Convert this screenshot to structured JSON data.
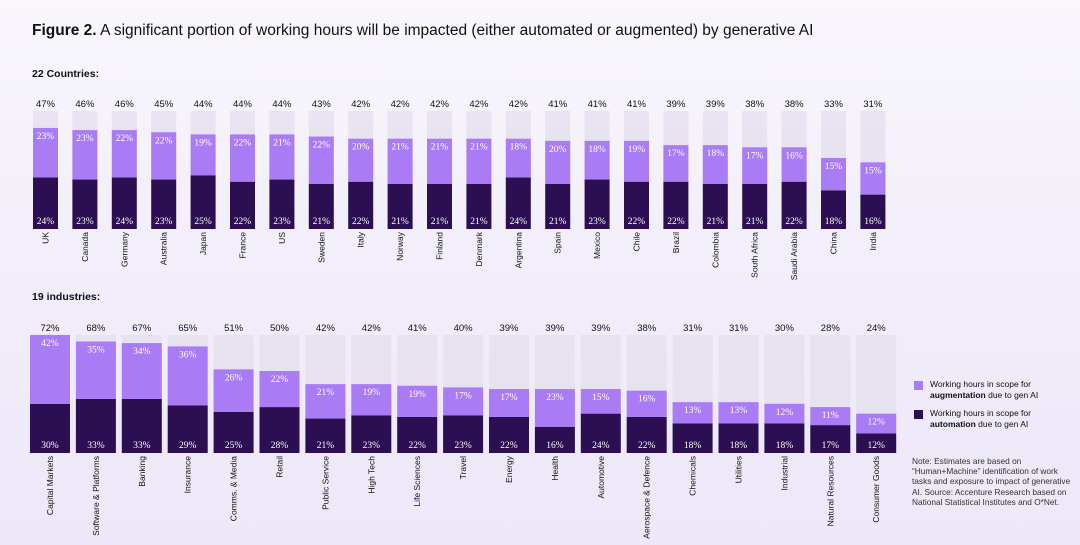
{
  "title": {
    "figure_label": "Figure 2.",
    "text": "A significant portion of working hours will be impacted (either automated or augmented) by generative AI"
  },
  "legend": {
    "augmentation": {
      "line1": "Working hours in scope for",
      "bold": "augmentation",
      "line2_rest": " due to gen AI",
      "color": "#a97cf5"
    },
    "automation": {
      "line1": "Working hours in scope for",
      "bold": "automation",
      "line2_rest": " due to gen AI",
      "color": "#2b0f52"
    },
    "background_bar_color": "#e5e1ee"
  },
  "note": "Note: Estimates are based on “Human+Machine” identification of work tasks and exposure to impact of generative AI. Source: Accenture Research based on National Statistical Institutes and O*Net.",
  "chart_data": [
    {
      "type": "bar",
      "stacked": true,
      "title": "22 Countries:",
      "categories": [
        "UK",
        "Canada",
        "Germany",
        "Australia",
        "Japan",
        "France",
        "US",
        "Sweden",
        "Italy",
        "Norway",
        "Finland",
        "Denmark",
        "Argentina",
        "Spain",
        "Mexico",
        "Chile",
        "Brazil",
        "Colombia",
        "South Africa",
        "Saudi Arabia",
        "China",
        "India"
      ],
      "totals": [
        47,
        46,
        46,
        45,
        44,
        44,
        44,
        43,
        42,
        42,
        42,
        42,
        42,
        41,
        41,
        41,
        39,
        39,
        38,
        38,
        33,
        31
      ],
      "series": [
        {
          "name": "automation",
          "values": [
            24,
            23,
            24,
            23,
            25,
            22,
            23,
            21,
            22,
            21,
            21,
            21,
            24,
            21,
            23,
            22,
            22,
            21,
            21,
            22,
            18,
            16
          ]
        },
        {
          "name": "augmentation",
          "values": [
            23,
            23,
            22,
            22,
            19,
            22,
            21,
            22,
            20,
            21,
            21,
            21,
            18,
            20,
            18,
            19,
            17,
            18,
            17,
            16,
            15,
            15
          ]
        }
      ],
      "unit": "%"
    },
    {
      "type": "bar",
      "stacked": true,
      "title": "19 industries:",
      "categories": [
        "Capital Markets",
        "Software & Platforms",
        "Banking",
        "Insurance",
        "Comms. & Media",
        "Retail",
        "Public Service",
        "High Tech",
        "Life Sciences",
        "Travel",
        "Energy",
        "Health",
        "Automotive",
        "Aerospace & Defence",
        "Chemicals",
        "Utilities",
        "Industrial",
        "Natural Resources",
        "Consumer Goods"
      ],
      "totals": [
        72,
        68,
        67,
        65,
        51,
        50,
        42,
        42,
        41,
        40,
        39,
        39,
        39,
        38,
        31,
        31,
        30,
        28,
        24
      ],
      "series": [
        {
          "name": "automation",
          "values": [
            30,
            33,
            33,
            29,
            25,
            28,
            21,
            23,
            22,
            23,
            22,
            16,
            24,
            22,
            18,
            18,
            18,
            17,
            12
          ]
        },
        {
          "name": "augmentation",
          "values": [
            42,
            35,
            34,
            36,
            26,
            22,
            21,
            19,
            19,
            17,
            17,
            23,
            15,
            16,
            13,
            13,
            12,
            11,
            12
          ]
        }
      ],
      "unit": "%"
    }
  ]
}
